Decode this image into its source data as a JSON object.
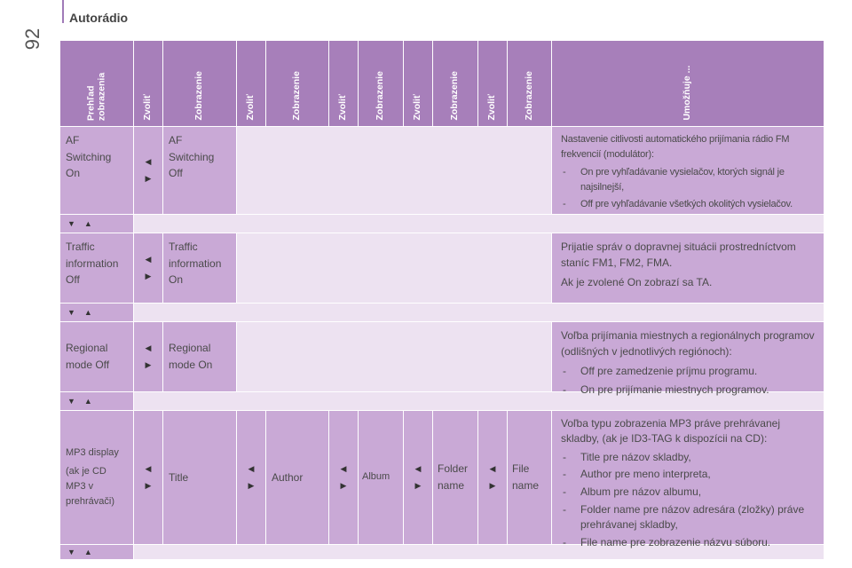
{
  "page": {
    "number": "92",
    "section_title": "Autorádio"
  },
  "header": {
    "col1_line1": "Prehľad",
    "col1_line2": "zobrazenia",
    "select": "Zvoliť",
    "display": "Zobrazenie",
    "enables": "Umožňuje ..."
  },
  "icons": {
    "left": "◀",
    "right": "▶",
    "down": "▼",
    "up": "▲"
  },
  "rows": {
    "af": {
      "display_line1": "AF",
      "display_line2": "Switching",
      "display_line3": "On",
      "alt_line1": "AF",
      "alt_line2": "Switching",
      "alt_line3": "Off",
      "desc_intro": "Nastavenie citlivosti automatického prijímania rádio FM frekvencií (modulátor):",
      "desc_item1": "On pre vyhľadávanie vysielačov, ktorých signál je najsilnejší,",
      "desc_item2": "Off pre vyhľadávanie všetkých okolitých vysielačov."
    },
    "traffic": {
      "display_line1": "Traffic",
      "display_line2": "information",
      "display_line3": "Off",
      "alt_line1": "Traffic",
      "alt_line2": "information",
      "alt_line3": "On",
      "desc_p1": "Prijatie správ o dopravnej situácii prostredníctvom staníc FM1, FM2, FMA.",
      "desc_p2": "Ak je zvolené On zobrazí sa TA."
    },
    "regional": {
      "display_line1": "Regional",
      "display_line2": "mode Off",
      "alt_line1": "Regional",
      "alt_line2": "mode On",
      "desc_intro": "Voľba prijímania miestnych a regionálnych programov (odlišných v jednotlivých regiónoch):",
      "desc_item1": "Off pre zamedzenie príjmu programu.",
      "desc_item2": "On pre prijímanie miestnych programov."
    },
    "mp3": {
      "display_line1": "MP3 display",
      "display_line2": "(ak je CD",
      "display_line3": "MP3 v",
      "display_line4": "prehrávači)",
      "opt1": "Title",
      "opt2": "Author",
      "opt3": "Album",
      "opt4_line1": "Folder",
      "opt4_line2": "name",
      "opt5_line1": "File",
      "opt5_line2": "name",
      "desc_intro": "Voľba typu zobrazenia MP3 práve prehrávanej skladby, (ak je ID3-TAG k dispozícii na CD):",
      "desc_item1": "Title pre názov skladby,",
      "desc_item2": "Author pre meno interpreta,",
      "desc_item3": "Album pre názov albumu,",
      "desc_item4": "Folder name pre názov adresára (zložky) práve prehrávanej skladby,",
      "desc_item5": "File name pre zobrazenie názvu súboru."
    }
  },
  "colors": {
    "header": "#a77fba",
    "cell": "#c9a9d6",
    "pale": "#ede2f1",
    "accent": "#a07ab8"
  }
}
